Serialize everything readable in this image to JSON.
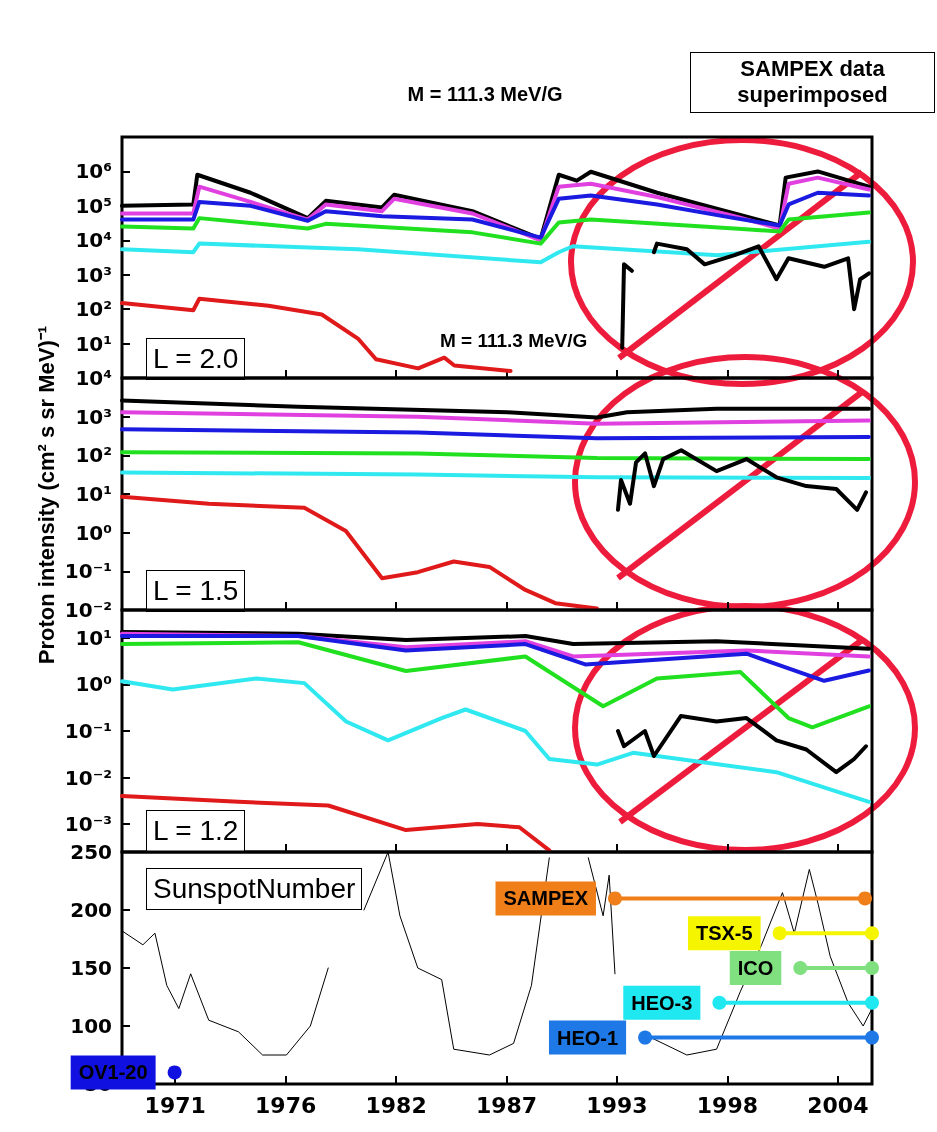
{
  "chart_data": [
    {
      "type": "line",
      "title": "M = 111.3 MeV/G",
      "annotations": [
        "M = 111.3 MeV/G",
        "L = 2.0",
        "SAMPEX data superimposed"
      ],
      "log": "y",
      "tick_labels": "y",
      "xlim": [
        1968.35,
        2005.7
      ],
      "xticks": [
        {
          "value": 1971,
          "label": null
        },
        {
          "value": 1976.5,
          "label": null
        },
        {
          "value": 1982,
          "label": null
        },
        {
          "value": 1987.5,
          "label": null
        },
        {
          "value": 1993,
          "label": null
        },
        {
          "value": 1998.5,
          "label": null
        },
        {
          "value": 2004,
          "label": null
        }
      ],
      "ylim": [
        1,
        10000000.0
      ],
      "yticks": [
        {
          "value": 10,
          "label": "10¹"
        },
        {
          "value": 100,
          "label": "10²"
        },
        {
          "value": 1000,
          "label": "10³"
        },
        {
          "value": 10000,
          "label": "10⁴"
        },
        {
          "value": 100000,
          "label": "10⁵"
        },
        {
          "value": 1000000,
          "label": "10⁶"
        }
      ],
      "series": [
        {
          "color": "#000000",
          "x": [
            1968.35,
            1971.9,
            1972.1,
            1974.75,
            1977.6,
            1978.5,
            1981.3,
            1981.9,
            1985.8,
            1989.2,
            1990.1,
            1991.0,
            1991.7,
            1995.0,
            1998.85,
            2001.1,
            2001.4,
            2003.0,
            2005.55
          ],
          "values": [
            100000.0,
            110000.0,
            800000.0,
            240000.0,
            44000.0,
            140000.0,
            90000.0,
            210000.0,
            70000.0,
            11000.0,
            800000.0,
            540000.0,
            980000.0,
            240000.0,
            60000.0,
            27000.0,
            660000.0,
            1000000.0,
            360000.0
          ]
        },
        {
          "color": "#e040e0",
          "x": [
            1968.35,
            1971.9,
            1972.2,
            1974.75,
            1977.6,
            1978.5,
            1981.3,
            1981.9,
            1985.8,
            1989.2,
            1990.1,
            1991.7,
            1995.0,
            1998.85,
            2001.1,
            2001.55,
            2003.0,
            2005.55
          ],
          "values": [
            60000.0,
            60000.0,
            360000.0,
            130000.0,
            40000.0,
            110000.0,
            70000.0,
            160000.0,
            60000.0,
            10000.0,
            360000.0,
            440000.0,
            180000.0,
            50000.0,
            22000.0,
            440000.0,
            660000.0,
            300000.0
          ]
        },
        {
          "color": "#1a1ae0",
          "x": [
            1968.35,
            1971.9,
            1972.2,
            1974.75,
            1977.6,
            1978.5,
            1981.3,
            1985.8,
            1989.2,
            1990.1,
            1991.7,
            1995.0,
            1998.85,
            2001.1,
            2001.55,
            2003.0,
            2005.55
          ],
          "values": [
            40000.0,
            40000.0,
            130000.0,
            100000.0,
            37000.0,
            70000.0,
            50000.0,
            40000.0,
            12000.0,
            160000.0,
            200000.0,
            110000.0,
            44000.0,
            27000.0,
            110000.0,
            240000.0,
            200000.0
          ]
        },
        {
          "color": "#20e020",
          "x": [
            1968.35,
            1971.9,
            1972.2,
            1977.6,
            1978.5,
            1985.8,
            1989.2,
            1990.1,
            1991.7,
            1998.85,
            2001.1,
            2001.55,
            2005.55
          ],
          "values": [
            25000.0,
            22000.0,
            44000.0,
            22000.0,
            30000.0,
            17000.0,
            8000.0,
            33000.0,
            40000.0,
            22000.0,
            18000.0,
            40000.0,
            64000.0
          ]
        },
        {
          "color": "#30e8f0",
          "x": [
            1968.35,
            1971.9,
            1972.2,
            1980.1,
            1989.2,
            1990.1,
            1990.8,
            1998.0,
            2005.55
          ],
          "values": [
            5500.0,
            4500.0,
            8000.0,
            5500.0,
            2300.0,
            4500.0,
            6700.0,
            3700.0,
            9000.0
          ]
        },
        {
          "color": "#e01a1a",
          "x": [
            1968.35,
            1971.9,
            1972.2,
            1975.65,
            1978.3,
            1980.1,
            1981.0,
            1983.1,
            1984.4,
            1984.9,
            1987.7
          ],
          "values": [
            150,
            93,
            200,
            125,
            70,
            14,
            3.5,
            1.9,
            3.9,
            2.3,
            1.6
          ]
        },
        {
          "color": "#000000",
          "x": [
            1993.26,
            1993.35,
            1993.74,
            1994.3,
            1994.84,
            1994.99,
            1996.48,
            1997.37,
            1998.86,
            2000.05,
            2000.94,
            2001.54,
            2003.32,
            2004.51,
            2004.81,
            2005.11,
            2005.55
          ],
          "values": [
            7.6,
            2000,
            1300,
            null,
            4500,
            8000,
            5500,
            2000,
            3700,
            6700,
            740,
            3000,
            1700,
            3000,
            100,
            740,
            1100
          ]
        }
      ]
    },
    {
      "type": "line",
      "ylabel": "Proton intensity (cm² s sr MeV)⁻¹",
      "annotations": [
        "L = 1.5"
      ],
      "log": "y",
      "tick_labels": "y",
      "xlim": [
        1968.35,
        2005.7
      ],
      "xticks": [
        {
          "value": 1971,
          "label": null
        },
        {
          "value": 1976.5,
          "label": null
        },
        {
          "value": 1982,
          "label": null
        },
        {
          "value": 1987.5,
          "label": null
        },
        {
          "value": 1993,
          "label": null
        },
        {
          "value": 1998.5,
          "label": null
        },
        {
          "value": 2004,
          "label": null
        }
      ],
      "ylim": [
        0.01,
        10000
      ],
      "yticks": [
        {
          "value": 0.01,
          "label": "10⁻²"
        },
        {
          "value": 0.1,
          "label": "10⁻¹"
        },
        {
          "value": 1,
          "label": "10⁰"
        },
        {
          "value": 10,
          "label": "10¹"
        },
        {
          "value": 100,
          "label": "10²"
        },
        {
          "value": 1000,
          "label": "10³"
        },
        {
          "value": 10000,
          "label": "10⁴"
        }
      ],
      "series": [
        {
          "color": "#000000",
          "x": [
            1968.35,
            1977.13,
            1987.55,
            1992.0,
            1993.5,
            1997.96,
            2005.55
          ],
          "values": [
            2600,
            1800,
            1300,
            950,
            1300,
            1600,
            1600
          ]
        },
        {
          "color": "#e040e0",
          "x": [
            1968.35,
            1983.08,
            1992.0,
            2005.55
          ],
          "values": [
            1300,
            1000,
            660,
            800
          ]
        },
        {
          "color": "#1a1ae0",
          "x": [
            1968.35,
            1983.08,
            1992.0,
            2005.55
          ],
          "values": [
            470,
            390,
            275,
            300
          ]
        },
        {
          "color": "#20e020",
          "x": [
            1968.35,
            1983.08,
            1992.0,
            2005.55
          ],
          "values": [
            120,
            112,
            85,
            80
          ]
        },
        {
          "color": "#30e8f0",
          "x": [
            1968.35,
            1983.08,
            1992.0,
            2005.55
          ],
          "values": [
            36,
            32,
            27,
            26
          ]
        },
        {
          "color": "#e01a1a",
          "x": [
            1968.35,
            1972.67,
            1977.43,
            1979.5,
            1981.3,
            1983.08,
            1984.87,
            1986.65,
            1988.44,
            1989.93,
            1992.0
          ],
          "values": [
            8.5,
            5.6,
            4.4,
            1.1,
            0.066,
            0.095,
            0.18,
            0.13,
            0.033,
            0.015,
            0.011
          ]
        },
        {
          "color": "#000000",
          "x": [
            1993.05,
            1993.2,
            1993.65,
            1993.95,
            1994.4,
            1994.84,
            1995.3,
            1996.2,
            1997.96,
            1999.45,
            2000.94,
            2002.43,
            2003.92,
            2004.96,
            2005.4
          ],
          "values": [
            3.9,
            23,
            5.6,
            66,
            112,
            16,
            80,
            135,
            39,
            80,
            27,
            16,
            13.5,
            3.9,
            11
          ]
        }
      ]
    },
    {
      "type": "line",
      "annotations": [
        "L = 1.2"
      ],
      "log": "y",
      "tick_labels": "y",
      "xlim": [
        1968.35,
        2005.7
      ],
      "xticks": [
        {
          "value": 1971,
          "label": null
        },
        {
          "value": 1976.5,
          "label": null
        },
        {
          "value": 1982,
          "label": null
        },
        {
          "value": 1987.5,
          "label": null
        },
        {
          "value": 1993,
          "label": null
        },
        {
          "value": 1998.5,
          "label": null
        },
        {
          "value": 2004,
          "label": null
        }
      ],
      "ylim": [
        0.00025,
        40
      ],
      "yticks": [
        {
          "value": 0.001,
          "label": "10⁻³"
        },
        {
          "value": 0.01,
          "label": "10⁻²"
        },
        {
          "value": 0.1,
          "label": "10⁻¹"
        },
        {
          "value": 1,
          "label": "10⁰"
        },
        {
          "value": 10,
          "label": "10¹"
        }
      ],
      "series": [
        {
          "color": "#000000",
          "x": [
            1968.35,
            1977.13,
            1982.49,
            1988.44,
            1990.82,
            1997.96,
            2005.55
          ],
          "values": [
            13.5,
            12.3,
            9.1,
            11,
            7.4,
            8.5,
            5.9
          ]
        },
        {
          "color": "#e040e0",
          "x": [
            1968.35,
            1977.13,
            1982.49,
            1988.44,
            1990.82,
            1999.45,
            2005.55
          ],
          "values": [
            12.3,
            11,
            6.3,
            8.5,
            4,
            5.4,
            4
          ]
        },
        {
          "color": "#1a1ae0",
          "x": [
            1968.35,
            1977.13,
            1982.49,
            1988.44,
            1991.42,
            1999.45,
            2003.32,
            2005.55
          ],
          "values": [
            11,
            11,
            5.4,
            7.4,
            2.7,
            4.6,
            1.2,
            2
          ]
        },
        {
          "color": "#20e020",
          "x": [
            1968.35,
            1977.13,
            1982.49,
            1988.44,
            1992.31,
            1994.99,
            1999.15,
            2001.54,
            2002.73,
            2005.55
          ],
          "values": [
            7.4,
            8.1,
            1.95,
            4,
            0.34,
            1.35,
            1.85,
            0.19,
            0.12,
            0.34
          ]
        },
        {
          "color": "#30e8f0",
          "x": [
            1968.35,
            1970.88,
            1975.05,
            1977.43,
            1979.51,
            1981.6,
            1984.27,
            1985.46,
            1988.44,
            1989.63,
            1992.01,
            1993.8,
            2000.94,
            2005.55
          ],
          "values": [
            1.17,
            0.78,
            1.35,
            1.07,
            0.16,
            0.063,
            0.19,
            0.29,
            0.1,
            0.025,
            0.019,
            0.034,
            0.013,
            0.003
          ]
        },
        {
          "color": "#e01a1a",
          "x": [
            1968.35,
            1974.15,
            1978.62,
            1982.49,
            1986.06,
            1988.14,
            1989.63
          ],
          "values": [
            0.004,
            0.003,
            0.0025,
            0.00074,
            0.001,
            0.00085,
            0.00027
          ]
        },
        {
          "color": "#000000",
          "x": [
            1993.05,
            1993.35,
            1994.39,
            1994.84,
            1996.18,
            1997.96,
            1999.45,
            2000.94,
            2002.43,
            2003.92,
            2004.81,
            2005.4
          ],
          "values": [
            0.1,
            0.047,
            0.1,
            0.029,
            0.21,
            0.16,
            0.19,
            0.063,
            0.04,
            0.013,
            0.025,
            0.047
          ]
        }
      ]
    },
    {
      "type": "line",
      "annotations": [
        "SunspotNumber"
      ],
      "xlim": [
        1968.35,
        2005.7
      ],
      "xticks": [
        1971,
        {
          "value": 1976.5,
          "label": "1976"
        },
        1982,
        {
          "value": 1987.5,
          "label": "1987"
        },
        1993,
        {
          "value": 1998.5,
          "label": "1998"
        },
        2004
      ],
      "ylim": [
        50,
        250
      ],
      "yticks": [
        50,
        100,
        150,
        200,
        250
      ],
      "series": [
        {
          "color": "#000000",
          "x": [
            1968.35,
            1969.39,
            1969.99,
            1970.58,
            1971.18,
            1971.77,
            1972.67,
            1974.15,
            1975.35,
            1976.54,
            1977.73,
            1978.62,
            1979.36,
            1980.4,
            1981.6,
            1982.19,
            1983.08,
            1984.27,
            1984.87,
            1986.65,
            1987.85,
            1988.74,
            1989.63,
            1990.82,
            1991.57,
            1992.31,
            1992.61,
            1992.9,
            1994.1,
            1994.69,
            1996.48,
            1997.96,
            1999.15,
            2000.2,
            2001.24,
            2001.83,
            2002.58,
            2003.02,
            2003.62,
            2004.51,
            2005.26,
            2005.7
          ],
          "values": [
            182,
            170,
            180,
            135,
            115,
            145,
            105,
            95,
            75,
            75,
            100,
            150,
            null,
            200,
            250,
            195,
            150,
            140,
            80,
            75,
            85,
            135,
            245,
            null,
            245,
            195,
            230,
            145,
            null,
            90,
            75,
            80,
            130,
            170,
            215,
            180,
            235,
            205,
            160,
            120,
            100,
            115
          ]
        },
        {
          "name": "SAMPEX",
          "color": "#f07f1a",
          "marker": "circle",
          "x": [
            1992.9,
            2005.35
          ],
          "values": [
            210,
            210
          ]
        },
        {
          "name": "TSX-5",
          "color": "#f5f500",
          "marker": "circle",
          "x": [
            2001.1,
            2005.7
          ],
          "values": [
            180,
            180
          ]
        },
        {
          "name": "ICO",
          "color": "#80e080",
          "marker": "circle",
          "x": [
            2002.13,
            2005.7
          ],
          "values": [
            150,
            150
          ]
        },
        {
          "name": "HEO-3",
          "color": "#20e8f0",
          "marker": "circle",
          "x": [
            1998.1,
            2005.7
          ],
          "values": [
            120,
            120
          ]
        },
        {
          "name": "HEO-1",
          "color": "#1e78e6",
          "marker": "circle",
          "x": [
            1994.4,
            2005.7
          ],
          "values": [
            90,
            90
          ]
        },
        {
          "name": "OV1-20",
          "color": "#1010e0",
          "marker": "circle",
          "x": [
            1970.97
          ],
          "values": [
            60
          ]
        }
      ]
    }
  ]
}
